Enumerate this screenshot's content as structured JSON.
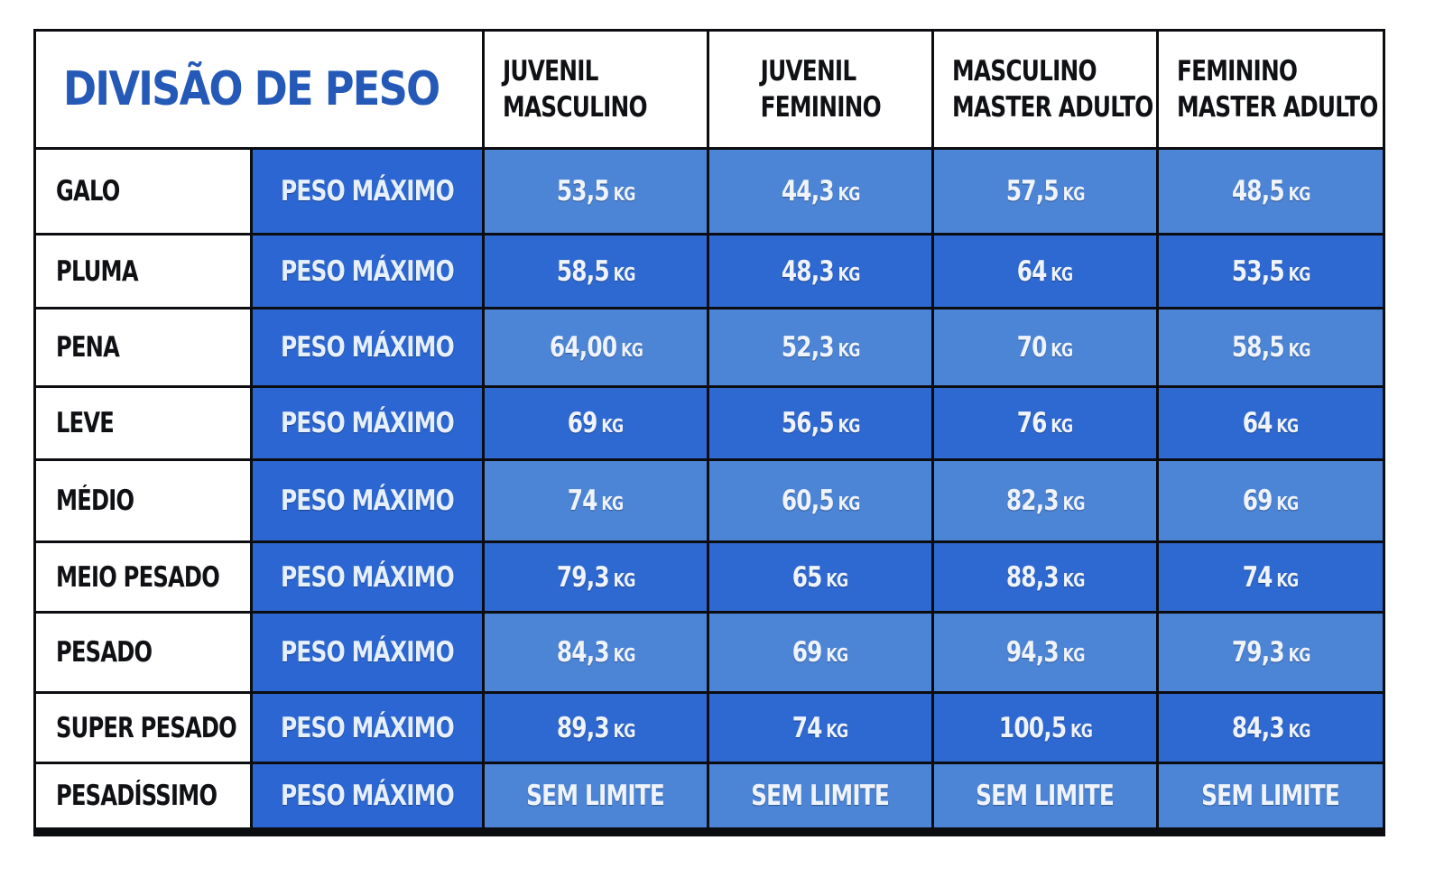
{
  "title": "DIVISÃO DE PESO",
  "columns": [
    {
      "line1": "JUVENIL",
      "line2": "MASCULINO"
    },
    {
      "line1": "JUVENIL",
      "line2": "FEMININO"
    },
    {
      "line1": "MASCULINO",
      "line2": "MASTER ADULTO"
    },
    {
      "line1": "FEMININO",
      "line2": "MASTER ADULTO"
    }
  ],
  "peso_label": "PESO MÁXIMO",
  "rows": [
    {
      "category": "GALO",
      "values": [
        {
          "v": "53,5",
          "u": "KG"
        },
        {
          "v": "44,3",
          "u": "KG"
        },
        {
          "v": "57,5",
          "u": "KG"
        },
        {
          "v": "48,5",
          "u": "KG"
        }
      ]
    },
    {
      "category": "PLUMA",
      "values": [
        {
          "v": "58,5",
          "u": "KG"
        },
        {
          "v": "48,3",
          "u": "KG"
        },
        {
          "v": "64",
          "u": "KG"
        },
        {
          "v": "53,5",
          "u": "KG"
        }
      ]
    },
    {
      "category": "PENA",
      "values": [
        {
          "v": "64,00",
          "u": "KG"
        },
        {
          "v": "52,3",
          "u": "KG"
        },
        {
          "v": "70",
          "u": "KG"
        },
        {
          "v": "58,5",
          "u": "KG"
        }
      ]
    },
    {
      "category": "LEVE",
      "values": [
        {
          "v": "69",
          "u": "KG"
        },
        {
          "v": "56,5",
          "u": "KG"
        },
        {
          "v": "76",
          "u": "KG"
        },
        {
          "v": "64",
          "u": "KG"
        }
      ]
    },
    {
      "category": "MÉDIO",
      "values": [
        {
          "v": "74",
          "u": "KG"
        },
        {
          "v": "60,5",
          "u": "KG"
        },
        {
          "v": "82,3",
          "u": "KG"
        },
        {
          "v": "69",
          "u": "KG"
        }
      ]
    },
    {
      "category": "MEIO PESADO",
      "values": [
        {
          "v": "79,3",
          "u": "KG"
        },
        {
          "v": "65",
          "u": "KG"
        },
        {
          "v": "88,3",
          "u": "KG"
        },
        {
          "v": "74",
          "u": "KG"
        }
      ]
    },
    {
      "category": "PESADO",
      "values": [
        {
          "v": "84,3",
          "u": "KG"
        },
        {
          "v": "69",
          "u": "KG"
        },
        {
          "v": "94,3",
          "u": "KG"
        },
        {
          "v": "79,3",
          "u": "KG"
        }
      ]
    },
    {
      "category": "SUPER PESADO",
      "values": [
        {
          "v": "89,3",
          "u": "KG"
        },
        {
          "v": "74",
          "u": "KG"
        },
        {
          "v": "100,5",
          "u": "KG"
        },
        {
          "v": "84,3",
          "u": "KG"
        }
      ]
    },
    {
      "category": "PESADÍSSIMO",
      "values": [
        {
          "v": "SEM LIMITE",
          "u": ""
        },
        {
          "v": "SEM LIMITE",
          "u": ""
        },
        {
          "v": "SEM LIMITE",
          "u": ""
        },
        {
          "v": "SEM LIMITE",
          "u": ""
        }
      ]
    }
  ],
  "colors": {
    "title": "#2559b8",
    "peso_label_bg": "#2b66d2",
    "value_light_bg": "#4c84d6",
    "value_dark_bg": "#2e68d1",
    "border": "#0c0d10"
  }
}
